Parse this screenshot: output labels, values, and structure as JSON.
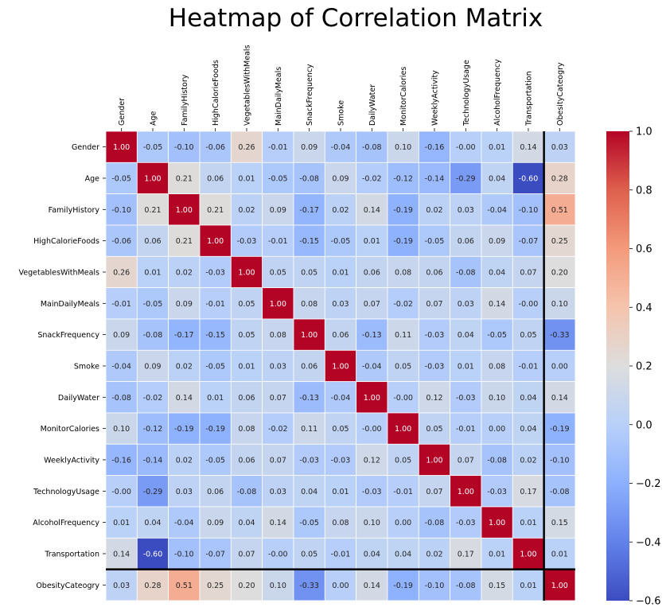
{
  "chart_data": {
    "type": "heatmap",
    "title": "Heatmap of Correlation Matrix",
    "xlabel": "",
    "ylabel": "",
    "colormap": "coolwarm",
    "vmin": -0.6,
    "vmax": 1.0,
    "x_tick_position": "top",
    "x_tick_rotation": 90,
    "colorbar_ticks": [
      "1.0",
      "0.8",
      "0.6",
      "0.4",
      "0.2",
      "0.0",
      "−0.2",
      "−0.4",
      "−0.6"
    ],
    "colorbar_tick_values": [
      1.0,
      0.8,
      0.6,
      0.4,
      0.2,
      0.0,
      -0.2,
      -0.4,
      -0.6
    ],
    "highlight_row": "ObesityCateogry",
    "highlight_column": "ObesityCateogry",
    "categories": [
      "Gender",
      "Age",
      "FamilyHistory",
      "HighCalorieFoods",
      "VegetablesWithMeals",
      "MainDailyMeals",
      "SnackFrequency",
      "Smoke",
      "DailyWater",
      "MonitorCalories",
      "WeeklyActivity",
      "TechnologyUsage",
      "AlcoholFrequency",
      "Transportation",
      "ObesityCateogry"
    ],
    "values": [
      [
        1.0,
        -0.05,
        -0.1,
        -0.06,
        0.26,
        -0.01,
        0.09,
        -0.04,
        -0.08,
        0.1,
        -0.16,
        -0.0,
        0.01,
        0.14,
        0.03
      ],
      [
        -0.05,
        1.0,
        0.21,
        0.06,
        0.01,
        -0.05,
        -0.08,
        0.09,
        -0.02,
        -0.12,
        -0.14,
        -0.29,
        0.04,
        -0.6,
        0.28
      ],
      [
        -0.1,
        0.21,
        1.0,
        0.21,
        0.02,
        0.09,
        -0.17,
        0.02,
        0.14,
        -0.19,
        0.02,
        0.03,
        -0.04,
        -0.1,
        0.51
      ],
      [
        -0.06,
        0.06,
        0.21,
        1.0,
        -0.03,
        -0.01,
        -0.15,
        -0.05,
        0.01,
        -0.19,
        -0.05,
        0.06,
        0.09,
        -0.07,
        0.25
      ],
      [
        0.26,
        0.01,
        0.02,
        -0.03,
        1.0,
        0.05,
        0.05,
        0.01,
        0.06,
        0.08,
        0.06,
        -0.08,
        0.04,
        0.07,
        0.2
      ],
      [
        -0.01,
        -0.05,
        0.09,
        -0.01,
        0.05,
        1.0,
        0.08,
        0.03,
        0.07,
        -0.02,
        0.07,
        0.03,
        0.14,
        -0.0,
        0.1
      ],
      [
        0.09,
        -0.08,
        -0.17,
        -0.15,
        0.05,
        0.08,
        1.0,
        0.06,
        -0.13,
        0.11,
        -0.03,
        0.04,
        -0.05,
        0.05,
        -0.33
      ],
      [
        -0.04,
        0.09,
        0.02,
        -0.05,
        0.01,
        0.03,
        0.06,
        1.0,
        -0.04,
        0.05,
        -0.03,
        0.01,
        0.08,
        -0.01,
        0.0
      ],
      [
        -0.08,
        -0.02,
        0.14,
        0.01,
        0.06,
        0.07,
        -0.13,
        -0.04,
        1.0,
        -0.0,
        0.12,
        -0.03,
        0.1,
        0.04,
        0.14
      ],
      [
        0.1,
        -0.12,
        -0.19,
        -0.19,
        0.08,
        -0.02,
        0.11,
        0.05,
        -0.0,
        1.0,
        0.05,
        -0.01,
        0.0,
        0.04,
        -0.19
      ],
      [
        -0.16,
        -0.14,
        0.02,
        -0.05,
        0.06,
        0.07,
        -0.03,
        -0.03,
        0.12,
        0.05,
        1.0,
        0.07,
        -0.08,
        0.02,
        -0.1
      ],
      [
        -0.0,
        -0.29,
        0.03,
        0.06,
        -0.08,
        0.03,
        0.04,
        0.01,
        -0.03,
        -0.01,
        0.07,
        1.0,
        -0.03,
        0.17,
        -0.08
      ],
      [
        0.01,
        0.04,
        -0.04,
        0.09,
        0.04,
        0.14,
        -0.05,
        0.08,
        0.1,
        0.0,
        -0.08,
        -0.03,
        1.0,
        0.01,
        0.15
      ],
      [
        0.14,
        -0.6,
        -0.1,
        -0.07,
        0.07,
        -0.0,
        0.05,
        -0.01,
        0.04,
        0.04,
        0.02,
        0.17,
        0.01,
        1.0,
        0.01
      ],
      [
        0.03,
        0.28,
        0.51,
        0.25,
        0.2,
        0.1,
        -0.33,
        0.0,
        0.14,
        -0.19,
        -0.1,
        -0.08,
        0.15,
        0.01,
        1.0
      ]
    ],
    "value_labels": [
      [
        "1.00",
        "-0.05",
        "-0.10",
        "-0.06",
        "0.26",
        "-0.01",
        "0.09",
        "-0.04",
        "-0.08",
        "0.10",
        "-0.16",
        "-0.00",
        "0.01",
        "0.14",
        "0.03"
      ],
      [
        "-0.05",
        "1.00",
        "0.21",
        "0.06",
        "0.01",
        "-0.05",
        "-0.08",
        "0.09",
        "-0.02",
        "-0.12",
        "-0.14",
        "-0.29",
        "0.04",
        "-0.60",
        "0.28"
      ],
      [
        "-0.10",
        "0.21",
        "1.00",
        "0.21",
        "0.02",
        "0.09",
        "-0.17",
        "0.02",
        "0.14",
        "-0.19",
        "0.02",
        "0.03",
        "-0.04",
        "-0.10",
        "0.51"
      ],
      [
        "-0.06",
        "0.06",
        "0.21",
        "1.00",
        "-0.03",
        "-0.01",
        "-0.15",
        "-0.05",
        "0.01",
        "-0.19",
        "-0.05",
        "0.06",
        "0.09",
        "-0.07",
        "0.25"
      ],
      [
        "0.26",
        "0.01",
        "0.02",
        "-0.03",
        "1.00",
        "0.05",
        "0.05",
        "0.01",
        "0.06",
        "0.08",
        "0.06",
        "-0.08",
        "0.04",
        "0.07",
        "0.20"
      ],
      [
        "-0.01",
        "-0.05",
        "0.09",
        "-0.01",
        "0.05",
        "1.00",
        "0.08",
        "0.03",
        "0.07",
        "-0.02",
        "0.07",
        "0.03",
        "0.14",
        "-0.00",
        "0.10"
      ],
      [
        "0.09",
        "-0.08",
        "-0.17",
        "-0.15",
        "0.05",
        "0.08",
        "1.00",
        "0.06",
        "-0.13",
        "0.11",
        "-0.03",
        "0.04",
        "-0.05",
        "0.05",
        "-0.33"
      ],
      [
        "-0.04",
        "0.09",
        "0.02",
        "-0.05",
        "0.01",
        "0.03",
        "0.06",
        "1.00",
        "-0.04",
        "0.05",
        "-0.03",
        "0.01",
        "0.08",
        "-0.01",
        "0.00"
      ],
      [
        "-0.08",
        "-0.02",
        "0.14",
        "0.01",
        "0.06",
        "0.07",
        "-0.13",
        "-0.04",
        "1.00",
        "-0.00",
        "0.12",
        "-0.03",
        "0.10",
        "0.04",
        "0.14"
      ],
      [
        "0.10",
        "-0.12",
        "-0.19",
        "-0.19",
        "0.08",
        "-0.02",
        "0.11",
        "0.05",
        "-0.00",
        "1.00",
        "0.05",
        "-0.01",
        "0.00",
        "0.04",
        "-0.19"
      ],
      [
        "-0.16",
        "-0.14",
        "0.02",
        "-0.05",
        "0.06",
        "0.07",
        "-0.03",
        "-0.03",
        "0.12",
        "0.05",
        "1.00",
        "0.07",
        "-0.08",
        "0.02",
        "-0.10"
      ],
      [
        "-0.00",
        "-0.29",
        "0.03",
        "0.06",
        "-0.08",
        "0.03",
        "0.04",
        "0.01",
        "-0.03",
        "-0.01",
        "0.07",
        "1.00",
        "-0.03",
        "0.17",
        "-0.08"
      ],
      [
        "0.01",
        "0.04",
        "-0.04",
        "0.09",
        "0.04",
        "0.14",
        "-0.05",
        "0.08",
        "0.10",
        "0.00",
        "-0.08",
        "-0.03",
        "1.00",
        "0.01",
        "0.15"
      ],
      [
        "0.14",
        "-0.60",
        "-0.10",
        "-0.07",
        "0.07",
        "-0.00",
        "0.05",
        "-0.01",
        "0.04",
        "0.04",
        "0.02",
        "0.17",
        "0.01",
        "1.00",
        "0.01"
      ],
      [
        "0.03",
        "0.28",
        "0.51",
        "0.25",
        "0.20",
        "0.10",
        "-0.33",
        "0.00",
        "0.14",
        "-0.19",
        "-0.10",
        "-0.08",
        "0.15",
        "0.01",
        "1.00"
      ]
    ]
  }
}
